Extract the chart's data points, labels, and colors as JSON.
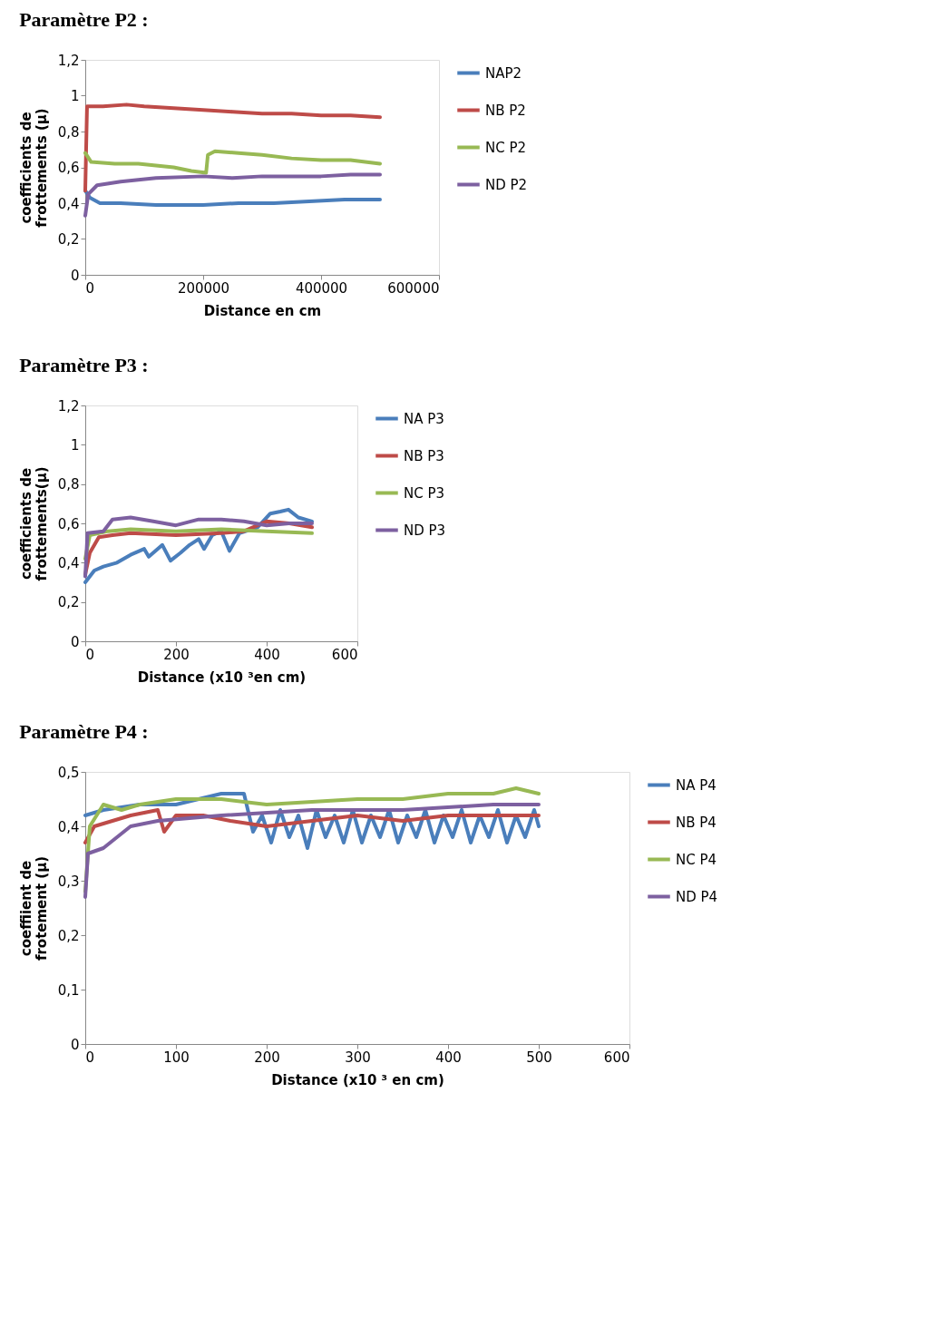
{
  "chart_data": [
    {
      "type": "line",
      "title": "Paramètre P2 :",
      "xlabel": "Distance en cm",
      "ylabel": "coefficients de frottements (µ)",
      "xlim": [
        0,
        600000
      ],
      "xticks": [
        0,
        200000,
        400000,
        600000
      ],
      "ylim": [
        0,
        1.2
      ],
      "yticks": [
        0,
        {
          "value": 0.2,
          "label": "0,2"
        },
        {
          "value": 0.4,
          "label": "0,4"
        },
        {
          "value": 0.6,
          "label": "0,6"
        },
        {
          "value": 0.8,
          "label": "0,8"
        },
        1,
        {
          "value": 1.2,
          "label": "1,2"
        }
      ],
      "grid": false,
      "legend": "right",
      "line_style": "solid",
      "marker": "none",
      "series": [
        {
          "name": "NAP2",
          "color": "#4a7ebb",
          "x": [
            0,
            8000,
            25000,
            60000,
            120000,
            200000,
            260000,
            320000,
            380000,
            440000,
            500000
          ],
          "values": [
            0.47,
            0.43,
            0.4,
            0.4,
            0.39,
            0.39,
            0.4,
            0.4,
            0.41,
            0.42,
            0.42
          ]
        },
        {
          "name": "NB P2",
          "color": "#be4b48",
          "x": [
            0,
            3000,
            30000,
            70000,
            100000,
            150000,
            200000,
            250000,
            300000,
            350000,
            400000,
            450000,
            500000
          ],
          "values": [
            0.47,
            0.94,
            0.94,
            0.95,
            0.94,
            0.93,
            0.92,
            0.91,
            0.9,
            0.9,
            0.89,
            0.89,
            0.88
          ]
        },
        {
          "name": "NC P2",
          "color": "#98b954",
          "x": [
            0,
            10000,
            50000,
            90000,
            120000,
            150000,
            180000,
            205000,
            208000,
            220000,
            260000,
            300000,
            350000,
            400000,
            450000,
            500000
          ],
          "values": [
            0.68,
            0.63,
            0.62,
            0.62,
            0.61,
            0.6,
            0.58,
            0.57,
            0.67,
            0.69,
            0.68,
            0.67,
            0.65,
            0.64,
            0.64,
            0.62
          ]
        },
        {
          "name": "ND P2",
          "color": "#7d60a0",
          "x": [
            0,
            5000,
            20000,
            60000,
            120000,
            200000,
            250000,
            300000,
            350000,
            400000,
            450000,
            500000
          ],
          "values": [
            0.33,
            0.45,
            0.5,
            0.52,
            0.54,
            0.55,
            0.54,
            0.55,
            0.55,
            0.55,
            0.56,
            0.56
          ]
        }
      ]
    },
    {
      "type": "line",
      "title": "Paramètre P3 :",
      "xlabel": "Distance (x10 ³en cm)",
      "ylabel": "coefficients de frottements(µ)",
      "xlim": [
        0,
        600
      ],
      "xticks": [
        0,
        200,
        400,
        600
      ],
      "ylim": [
        0,
        1.2
      ],
      "yticks": [
        0,
        {
          "value": 0.2,
          "label": "0,2"
        },
        {
          "value": 0.4,
          "label": "0,4"
        },
        {
          "value": 0.6,
          "label": "0,6"
        },
        {
          "value": 0.8,
          "label": "0,8"
        },
        1,
        {
          "value": 1.2,
          "label": "1,2"
        }
      ],
      "grid": false,
      "legend": "right",
      "line_style": "solid",
      "marker": "none",
      "series": [
        {
          "name": "NA P3",
          "color": "#4a7ebb",
          "x": [
            0,
            20,
            40,
            70,
            100,
            130,
            140,
            170,
            188,
            210,
            230,
            250,
            262,
            280,
            300,
            318,
            340,
            380,
            408,
            430,
            448,
            470,
            500
          ],
          "values": [
            0.3,
            0.36,
            0.38,
            0.4,
            0.44,
            0.47,
            0.43,
            0.49,
            0.41,
            0.45,
            0.49,
            0.52,
            0.47,
            0.54,
            0.56,
            0.46,
            0.55,
            0.58,
            0.65,
            0.66,
            0.67,
            0.63,
            0.61
          ]
        },
        {
          "name": "NB P3",
          "color": "#be4b48",
          "x": [
            0,
            10,
            30,
            60,
            100,
            200,
            300,
            350,
            400,
            450,
            500
          ],
          "values": [
            0.34,
            0.45,
            0.53,
            0.54,
            0.55,
            0.54,
            0.55,
            0.56,
            0.61,
            0.6,
            0.58
          ]
        },
        {
          "name": "NC P3",
          "color": "#98b954",
          "x": [
            0,
            10,
            50,
            100,
            200,
            300,
            400,
            500
          ],
          "values": [
            0.42,
            0.54,
            0.56,
            0.57,
            0.56,
            0.57,
            0.56,
            0.55
          ]
        },
        {
          "name": "ND P3",
          "color": "#7d60a0",
          "x": [
            0,
            5,
            40,
            60,
            100,
            150,
            200,
            250,
            300,
            350,
            400,
            450,
            500
          ],
          "values": [
            0.33,
            0.55,
            0.56,
            0.62,
            0.63,
            0.61,
            0.59,
            0.62,
            0.62,
            0.61,
            0.59,
            0.6,
            0.6
          ]
        }
      ]
    },
    {
      "type": "line",
      "title": "Paramètre P4 :",
      "xlabel": "Distance (x10 ³ en cm)",
      "ylabel": "coeffiient de frotement (µ)",
      "xlim": [
        0,
        600
      ],
      "xticks": [
        0,
        100,
        200,
        300,
        400,
        500,
        600
      ],
      "ylim": [
        0,
        0.5
      ],
      "yticks": [
        0,
        {
          "value": 0.1,
          "label": "0,1"
        },
        {
          "value": 0.2,
          "label": "0,2"
        },
        {
          "value": 0.3,
          "label": "0,3"
        },
        {
          "value": 0.4,
          "label": "0,4"
        },
        {
          "value": 0.5,
          "label": "0,5"
        }
      ],
      "grid": false,
      "legend": "right",
      "line_style": "solid",
      "marker": "none",
      "series": [
        {
          "name": "NA P4",
          "color": "#4a7ebb",
          "x": [
            0,
            20,
            60,
            100,
            150,
            175,
            185,
            195,
            205,
            215,
            225,
            235,
            245,
            255,
            265,
            275,
            285,
            295,
            305,
            315,
            325,
            335,
            345,
            355,
            365,
            375,
            385,
            395,
            405,
            415,
            425,
            435,
            445,
            455,
            465,
            475,
            485,
            495,
            500
          ],
          "values": [
            0.42,
            0.43,
            0.44,
            0.44,
            0.46,
            0.46,
            0.39,
            0.42,
            0.37,
            0.43,
            0.38,
            0.42,
            0.36,
            0.43,
            0.38,
            0.42,
            0.37,
            0.43,
            0.37,
            0.42,
            0.38,
            0.43,
            0.37,
            0.42,
            0.38,
            0.43,
            0.37,
            0.42,
            0.38,
            0.43,
            0.37,
            0.42,
            0.38,
            0.43,
            0.37,
            0.42,
            0.38,
            0.43,
            0.4
          ]
        },
        {
          "name": "NB P4",
          "color": "#be4b48",
          "x": [
            0,
            10,
            50,
            80,
            87,
            100,
            130,
            160,
            200,
            250,
            300,
            350,
            400,
            450,
            500
          ],
          "values": [
            0.37,
            0.4,
            0.42,
            0.43,
            0.39,
            0.42,
            0.42,
            0.41,
            0.4,
            0.41,
            0.42,
            0.41,
            0.42,
            0.42,
            0.42
          ]
        },
        {
          "name": "NC P4",
          "color": "#98b954",
          "x": [
            0,
            5,
            20,
            40,
            60,
            100,
            150,
            200,
            300,
            350,
            400,
            450,
            475,
            500
          ],
          "values": [
            0.28,
            0.4,
            0.44,
            0.43,
            0.44,
            0.45,
            0.45,
            0.44,
            0.45,
            0.45,
            0.46,
            0.46,
            0.47,
            0.46
          ]
        },
        {
          "name": "ND P4",
          "color": "#7d60a0",
          "x": [
            0,
            3,
            20,
            50,
            80,
            150,
            250,
            350,
            450,
            500
          ],
          "values": [
            0.27,
            0.35,
            0.36,
            0.4,
            0.41,
            0.42,
            0.43,
            0.43,
            0.44,
            0.44
          ]
        }
      ]
    }
  ]
}
